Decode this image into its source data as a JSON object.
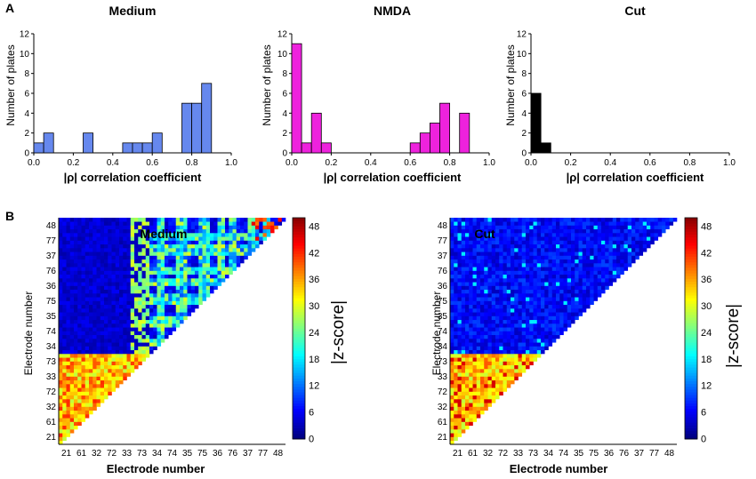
{
  "panels": {
    "a": "A",
    "b": "B"
  },
  "histograms": {
    "xlabel": "|ρ| correlation coefficient",
    "ylabel": "Number of plates",
    "xticks": [
      "0.0",
      "0.2",
      "0.4",
      "0.6",
      "0.8",
      "1.0"
    ],
    "yticks": [
      "0",
      "2",
      "4",
      "6",
      "8",
      "10",
      "12"
    ]
  },
  "heatmaps": {
    "xlabel": "Electrode number",
    "ylabel": "Electrode number",
    "row_ticks": [
      "21",
      "61",
      "32",
      "72",
      "33",
      "73",
      "34",
      "74",
      "35",
      "75",
      "36",
      "76",
      "37",
      "77",
      "48"
    ],
    "col_ticks": [
      "21",
      "61",
      "32",
      "72",
      "33",
      "73",
      "34",
      "74",
      "35",
      "75",
      "36",
      "76",
      "37",
      "77",
      "48"
    ],
    "colorbar_ticks": [
      "0",
      "6",
      "12",
      "18",
      "24",
      "30",
      "36",
      "42",
      "48"
    ],
    "colorbar_label": "|z-score|"
  },
  "chart_data": [
    {
      "type": "bar",
      "title": "Medium",
      "xlabel": "|ρ| correlation coefficient",
      "ylabel": "Number of plates",
      "bin_width": 0.05,
      "bins": [
        0.0,
        0.05,
        0.25,
        0.45,
        0.5,
        0.55,
        0.6,
        0.75,
        0.8,
        0.85
      ],
      "values": [
        1,
        2,
        2,
        1,
        1,
        1,
        2,
        5,
        5,
        7
      ],
      "color": "#6688ee",
      "xlim": [
        0,
        1
      ],
      "ylim": [
        0,
        12
      ]
    },
    {
      "type": "bar",
      "title": "NMDA",
      "xlabel": "|ρ| correlation coefficient",
      "ylabel": "Number of plates",
      "bin_width": 0.05,
      "bins": [
        0.0,
        0.05,
        0.1,
        0.15,
        0.6,
        0.65,
        0.7,
        0.75,
        0.85
      ],
      "values": [
        11,
        1,
        4,
        1,
        1,
        2,
        3,
        5,
        4
      ],
      "color": "#ee22dd",
      "xlim": [
        0,
        1
      ],
      "ylim": [
        0,
        12
      ]
    },
    {
      "type": "bar",
      "title": "Cut",
      "xlabel": "|ρ| correlation coefficient",
      "ylabel": "Number of plates",
      "bin_width": 0.05,
      "bins": [
        0.0,
        0.05
      ],
      "values": [
        6,
        1
      ],
      "color": "#000000",
      "xlim": [
        0,
        1
      ],
      "ylim": [
        0,
        12
      ]
    },
    {
      "type": "heatmap",
      "title": "Medium",
      "xlabel": "Electrode number",
      "ylabel": "Electrode number",
      "colorbar_range": [
        0,
        50
      ],
      "colorbar_label": "|z-score|"
    },
    {
      "type": "heatmap",
      "title": "Cut",
      "xlabel": "Electrode number",
      "ylabel": "Electrode number",
      "colorbar_range": [
        0,
        50
      ],
      "colorbar_label": "|z-score|"
    }
  ]
}
